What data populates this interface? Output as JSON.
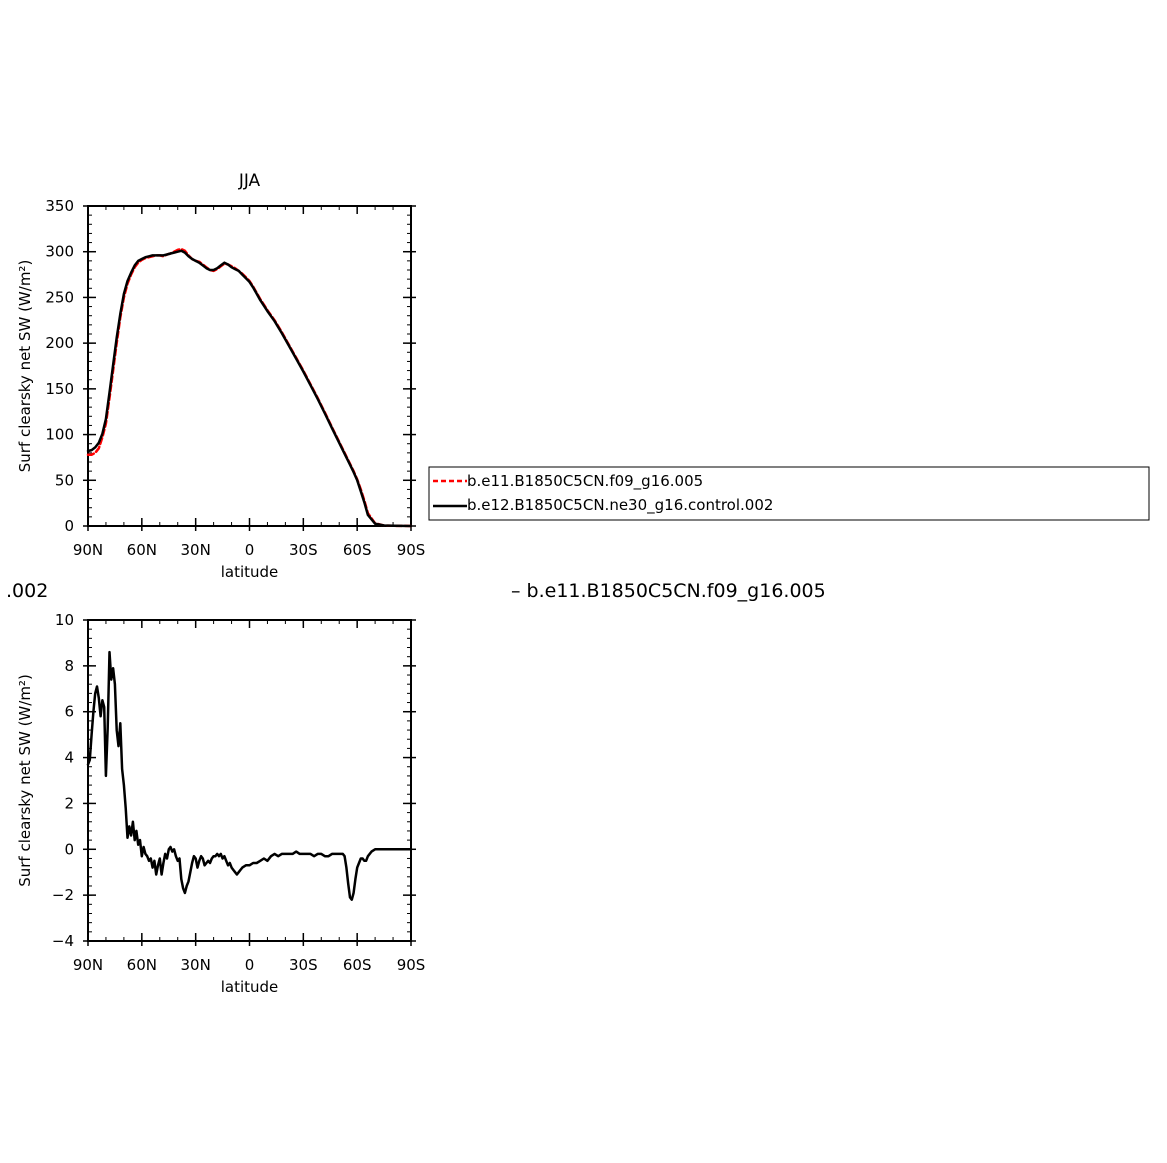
{
  "subtitles": {
    "left_fragment": ".002",
    "right_label": "–  b.e11.B1850C5CN.f09_g16.005"
  },
  "legend": {
    "entries": [
      {
        "label": "b.e11.B1850C5CN.f09_g16.005",
        "color": "#ff0000",
        "style": "dashed"
      },
      {
        "label": "b.e12.B1850C5CN.ne30_g16.control.002",
        "color": "#000000",
        "style": "solid"
      }
    ]
  },
  "chart_data": [
    {
      "type": "line",
      "title": "JJA",
      "xlabel": "latitude",
      "ylabel": "Surf clearsky net SW (W/m²)",
      "xlim": [
        90,
        -90
      ],
      "ylim": [
        0,
        350
      ],
      "x_ticks": [
        90,
        60,
        30,
        0,
        -30,
        -60,
        -90
      ],
      "x_tick_labels": [
        "90N",
        "60N",
        "30N",
        "0",
        "30S",
        "60S",
        "90S"
      ],
      "y_ticks": [
        0,
        50,
        100,
        150,
        200,
        250,
        300,
        350
      ],
      "y_tick_labels": [
        "0",
        "50",
        "100",
        "150",
        "200",
        "250",
        "300",
        "350"
      ],
      "grid": false,
      "series": [
        {
          "name": "b.e11.B1850C5CN.f09_g16.005",
          "color": "#ff0000",
          "dash": true,
          "x": [
            90,
            88,
            86,
            84,
            82,
            80,
            78,
            76,
            74,
            72,
            70,
            68,
            66,
            64,
            62,
            60,
            58,
            56,
            54,
            52,
            50,
            48,
            46,
            44,
            42,
            40,
            38,
            36,
            34,
            32,
            30,
            28,
            26,
            24,
            22,
            20,
            18,
            16,
            14,
            12,
            10,
            8,
            6,
            4,
            2,
            0,
            -2,
            -4,
            -6,
            -8,
            -10,
            -14,
            -18,
            -22,
            -26,
            -30,
            -34,
            -38,
            -42,
            -46,
            -50,
            -54,
            -56,
            -58,
            -60,
            -62,
            -64,
            -66,
            -70,
            -75,
            -80,
            -85,
            -90
          ],
          "values": [
            78,
            78,
            80,
            85,
            97,
            112,
            140,
            170,
            200,
            228,
            250,
            265,
            275,
            283,
            288,
            291,
            293,
            294,
            295,
            296,
            296,
            295,
            297,
            298,
            300,
            302,
            303,
            301,
            296,
            292,
            290,
            289,
            286,
            283,
            280,
            279,
            281,
            284,
            287,
            286,
            284,
            282,
            279,
            276,
            272,
            268,
            262,
            255,
            248,
            242,
            236,
            225,
            212,
            198,
            184,
            170,
            155,
            140,
            124,
            108,
            92,
            76,
            68,
            60,
            51,
            40,
            28,
            14,
            3,
            0.6,
            0.2,
            0.1,
            0
          ]
        },
        {
          "name": "b.e12.B1850C5CN.ne30_g16.control.002",
          "color": "#000000",
          "dash": false,
          "x": [
            90,
            88,
            86,
            84,
            82,
            80,
            78,
            76,
            74,
            72,
            70,
            68,
            66,
            64,
            62,
            60,
            58,
            56,
            54,
            52,
            50,
            48,
            46,
            44,
            42,
            40,
            38,
            36,
            34,
            32,
            30,
            28,
            26,
            24,
            22,
            20,
            18,
            16,
            14,
            12,
            10,
            8,
            6,
            4,
            2,
            0,
            -2,
            -4,
            -6,
            -8,
            -10,
            -14,
            -18,
            -22,
            -26,
            -30,
            -34,
            -38,
            -42,
            -46,
            -50,
            -54,
            -56,
            -58,
            -60,
            -62,
            -64,
            -66,
            -70,
            -75,
            -80,
            -85,
            -90
          ],
          "values": [
            82,
            83,
            86,
            91,
            101,
            117,
            146,
            176,
            206,
            232,
            254,
            268,
            277,
            285,
            290,
            292,
            294,
            295,
            296,
            296,
            296,
            296,
            297,
            298,
            299,
            300,
            301,
            299,
            295,
            292,
            290,
            288,
            285,
            282,
            280,
            280,
            282,
            285,
            288,
            286,
            283,
            281,
            279,
            275,
            271,
            267,
            261,
            254,
            247,
            241,
            235,
            224,
            211,
            197,
            183,
            169,
            154,
            139,
            123,
            107,
            91,
            75,
            67,
            59,
            50,
            38,
            26,
            12,
            2.5,
            0.5,
            0.2,
            0.1,
            0
          ]
        }
      ]
    },
    {
      "type": "line",
      "title": "",
      "xlabel": "latitude",
      "ylabel": "Surf clearsky net SW (W/m²)",
      "xlim": [
        90,
        -90
      ],
      "ylim": [
        -4,
        10
      ],
      "x_ticks": [
        90,
        60,
        30,
        0,
        -30,
        -60,
        -90
      ],
      "x_tick_labels": [
        "90N",
        "60N",
        "30N",
        "0",
        "30S",
        "60S",
        "90S"
      ],
      "y_ticks": [
        -4,
        -2,
        0,
        2,
        4,
        6,
        8,
        10
      ],
      "y_tick_labels": [
        "−4",
        "−2",
        "0",
        "2",
        "4",
        "6",
        "8",
        "10"
      ],
      "grid": false,
      "series": [
        {
          "color": "#000000",
          "dash": false,
          "x": [
            90,
            89,
            88,
            87,
            86,
            85,
            84,
            83,
            82,
            81,
            80,
            79,
            78,
            77,
            76,
            75,
            74,
            73,
            72,
            71,
            70,
            69,
            68,
            67,
            66,
            65,
            64,
            63,
            62,
            61,
            60,
            59,
            58,
            57,
            56,
            55,
            54,
            53,
            52,
            51,
            50,
            49,
            48,
            47,
            46,
            45,
            44,
            43,
            42,
            41,
            40,
            39,
            38,
            37,
            36,
            35,
            34,
            33,
            32,
            31,
            30,
            29,
            28,
            27,
            26,
            25,
            24,
            23,
            22,
            21,
            20,
            19,
            18,
            17,
            16,
            15,
            14,
            13,
            12,
            11,
            10,
            9,
            8,
            7,
            6,
            5,
            4,
            2,
            0,
            -2,
            -4,
            -6,
            -8,
            -10,
            -12,
            -14,
            -16,
            -18,
            -20,
            -22,
            -24,
            -26,
            -28,
            -30,
            -32,
            -34,
            -36,
            -38,
            -40,
            -42,
            -44,
            -46,
            -48,
            -50,
            -52,
            -53,
            -54,
            -55,
            -56,
            -57,
            -58,
            -59,
            -60,
            -61,
            -62,
            -63,
            -64,
            -65,
            -66,
            -68,
            -70,
            -75,
            -80,
            -85,
            -90
          ],
          "values": [
            3.7,
            3.9,
            5.0,
            6.0,
            6.8,
            7.1,
            6.6,
            5.8,
            6.5,
            6.2,
            3.2,
            5.3,
            8.6,
            7.4,
            7.9,
            7.2,
            5.2,
            4.5,
            5.5,
            3.5,
            2.8,
            1.8,
            0.5,
            1.0,
            0.6,
            1.2,
            0.4,
            0.8,
            0.2,
            0.4,
            -0.3,
            0.1,
            -0.2,
            -0.3,
            -0.5,
            -0.4,
            -0.8,
            -0.5,
            -1.1,
            -0.7,
            -0.4,
            -1.1,
            -0.6,
            -0.2,
            -0.4,
            0.0,
            0.1,
            -0.1,
            0.0,
            -0.3,
            -0.5,
            -0.4,
            -1.3,
            -1.7,
            -1.9,
            -1.6,
            -1.4,
            -1.0,
            -0.6,
            -0.3,
            -0.4,
            -0.8,
            -0.5,
            -0.3,
            -0.4,
            -0.7,
            -0.6,
            -0.5,
            -0.6,
            -0.4,
            -0.3,
            -0.3,
            -0.2,
            -0.3,
            -0.2,
            -0.4,
            -0.3,
            -0.5,
            -0.7,
            -0.6,
            -0.8,
            -0.9,
            -1.0,
            -1.1,
            -1.0,
            -0.9,
            -0.8,
            -0.7,
            -0.7,
            -0.6,
            -0.6,
            -0.5,
            -0.4,
            -0.5,
            -0.3,
            -0.2,
            -0.3,
            -0.2,
            -0.2,
            -0.2,
            -0.2,
            -0.1,
            -0.2,
            -0.2,
            -0.2,
            -0.2,
            -0.3,
            -0.2,
            -0.2,
            -0.3,
            -0.3,
            -0.2,
            -0.2,
            -0.2,
            -0.2,
            -0.3,
            -0.8,
            -1.5,
            -2.1,
            -2.2,
            -1.9,
            -1.3,
            -0.8,
            -0.6,
            -0.4,
            -0.4,
            -0.5,
            -0.5,
            -0.3,
            -0.1,
            0.0,
            0.0,
            0.0,
            0.0,
            0.0
          ]
        }
      ]
    }
  ]
}
